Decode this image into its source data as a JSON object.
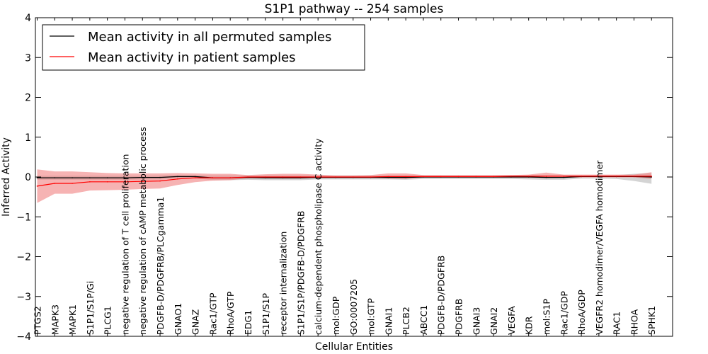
{
  "chart_data": {
    "type": "line",
    "title": "S1P1 pathway -- 254 samples",
    "xlabel": "Cellular Entities",
    "ylabel": "Inferred Activity",
    "ylim": [
      -4,
      4
    ],
    "yticks": [
      -4,
      -3,
      -2,
      -1,
      0,
      1,
      2,
      3,
      4
    ],
    "ytick_labels": [
      "−4",
      "−3",
      "−2",
      "−1",
      "0",
      "1",
      "2",
      "3",
      "4"
    ],
    "legend_position": "top-left",
    "grid": false,
    "categories": [
      "PTGS2",
      "MAPK3",
      "MAPK1",
      "S1P1/S1P/Gi",
      "PLCG1",
      "negative regulation of T cell proliferation",
      "negative regulation of cAMP metabolic process",
      "PDGFB-D/PDGFRB/PLCgamma1",
      "GNAO1",
      "GNAZ",
      "Rac1/GTP",
      "RhoA/GTP",
      "EDG1",
      "S1P1/S1P",
      "receptor internalization",
      "S1P1/S1P/PDGFB-D/PDGFRB",
      "calcium-dependent phospholipase C activity",
      "mol:GDP",
      "GO:0007205",
      "mol:GTP",
      "GNAI1",
      "PLCB2",
      "ABCC1",
      "PDGFB-D/PDGFRB",
      "PDGFRB",
      "GNAI3",
      "GNAI2",
      "VEGFA",
      "KDR",
      "mol:S1P",
      "Rac1/GDP",
      "RhoA/GDP",
      "VEGFR2 homodimer/VEGFA homodimer",
      "RAC1",
      "RHOA",
      "SPHK1"
    ],
    "x_positions": [
      0,
      1,
      2,
      3,
      4,
      5,
      6,
      7,
      8,
      9,
      10,
      11,
      12,
      13,
      14,
      15,
      16,
      17,
      18,
      19,
      20,
      21,
      22,
      23,
      24,
      25,
      26,
      27,
      28,
      29,
      30,
      31,
      32,
      33,
      34,
      35
    ],
    "xlim": [
      -0.1,
      36.2
    ],
    "series": [
      {
        "name": "Mean activity in all permuted samples",
        "color": "#000000",
        "band_color": "#b0b0b0",
        "values": [
          -0.02,
          -0.02,
          -0.02,
          -0.02,
          -0.02,
          -0.02,
          -0.01,
          -0.01,
          0.01,
          0.01,
          -0.02,
          -0.02,
          -0.01,
          -0.02,
          -0.02,
          -0.02,
          -0.01,
          -0.01,
          -0.01,
          -0.01,
          -0.01,
          -0.01,
          0.0,
          0.0,
          0.0,
          0.0,
          0.0,
          0.0,
          0.0,
          -0.01,
          -0.01,
          0.01,
          0.01,
          0.01,
          0.01,
          0.0
        ],
        "upper": [
          0.03,
          0.03,
          0.03,
          0.03,
          0.03,
          0.03,
          0.03,
          0.04,
          0.05,
          0.04,
          0.04,
          0.04,
          0.04,
          0.04,
          0.04,
          0.04,
          0.04,
          0.04,
          0.04,
          0.04,
          0.04,
          0.04,
          0.04,
          0.04,
          0.04,
          0.04,
          0.04,
          0.04,
          0.04,
          0.04,
          0.04,
          0.04,
          0.05,
          0.05,
          0.08,
          0.1
        ],
        "lower": [
          -0.07,
          -0.07,
          -0.07,
          -0.07,
          -0.07,
          -0.07,
          -0.06,
          -0.06,
          -0.03,
          -0.03,
          -0.08,
          -0.08,
          -0.07,
          -0.08,
          -0.08,
          -0.08,
          -0.06,
          -0.06,
          -0.06,
          -0.06,
          -0.06,
          -0.07,
          -0.05,
          -0.05,
          -0.05,
          -0.05,
          -0.05,
          -0.05,
          -0.06,
          -0.07,
          -0.07,
          -0.04,
          -0.04,
          -0.05,
          -0.1,
          -0.17
        ]
      },
      {
        "name": "Mean activity in patient samples",
        "color": "#ff0000",
        "band_color": "#f08080",
        "values": [
          -0.23,
          -0.16,
          -0.16,
          -0.12,
          -0.12,
          -0.12,
          -0.11,
          -0.1,
          -0.05,
          -0.02,
          -0.02,
          -0.02,
          0.0,
          0.0,
          0.0,
          0.0,
          0.0,
          0.0,
          0.0,
          0.0,
          0.01,
          0.01,
          0.01,
          0.01,
          0.01,
          0.01,
          0.01,
          0.02,
          0.02,
          0.02,
          0.02,
          0.02,
          0.02,
          0.02,
          0.02,
          0.02
        ],
        "upper": [
          0.19,
          0.14,
          0.14,
          0.12,
          0.1,
          0.09,
          0.09,
          0.09,
          0.1,
          0.09,
          0.08,
          0.08,
          0.05,
          0.07,
          0.08,
          0.08,
          0.06,
          0.04,
          0.04,
          0.05,
          0.09,
          0.09,
          0.05,
          0.05,
          0.05,
          0.05,
          0.05,
          0.05,
          0.06,
          0.11,
          0.06,
          0.06,
          0.06,
          0.06,
          0.06,
          0.12
        ],
        "lower": [
          -0.65,
          -0.42,
          -0.42,
          -0.34,
          -0.33,
          -0.32,
          -0.3,
          -0.29,
          -0.2,
          -0.13,
          -0.09,
          -0.08,
          -0.03,
          -0.03,
          -0.04,
          -0.04,
          -0.02,
          -0.01,
          -0.01,
          -0.01,
          -0.04,
          -0.05,
          -0.02,
          -0.02,
          -0.02,
          -0.02,
          -0.02,
          -0.02,
          -0.02,
          -0.03,
          -0.02,
          -0.01,
          -0.01,
          -0.01,
          -0.01,
          -0.05
        ]
      }
    ]
  }
}
